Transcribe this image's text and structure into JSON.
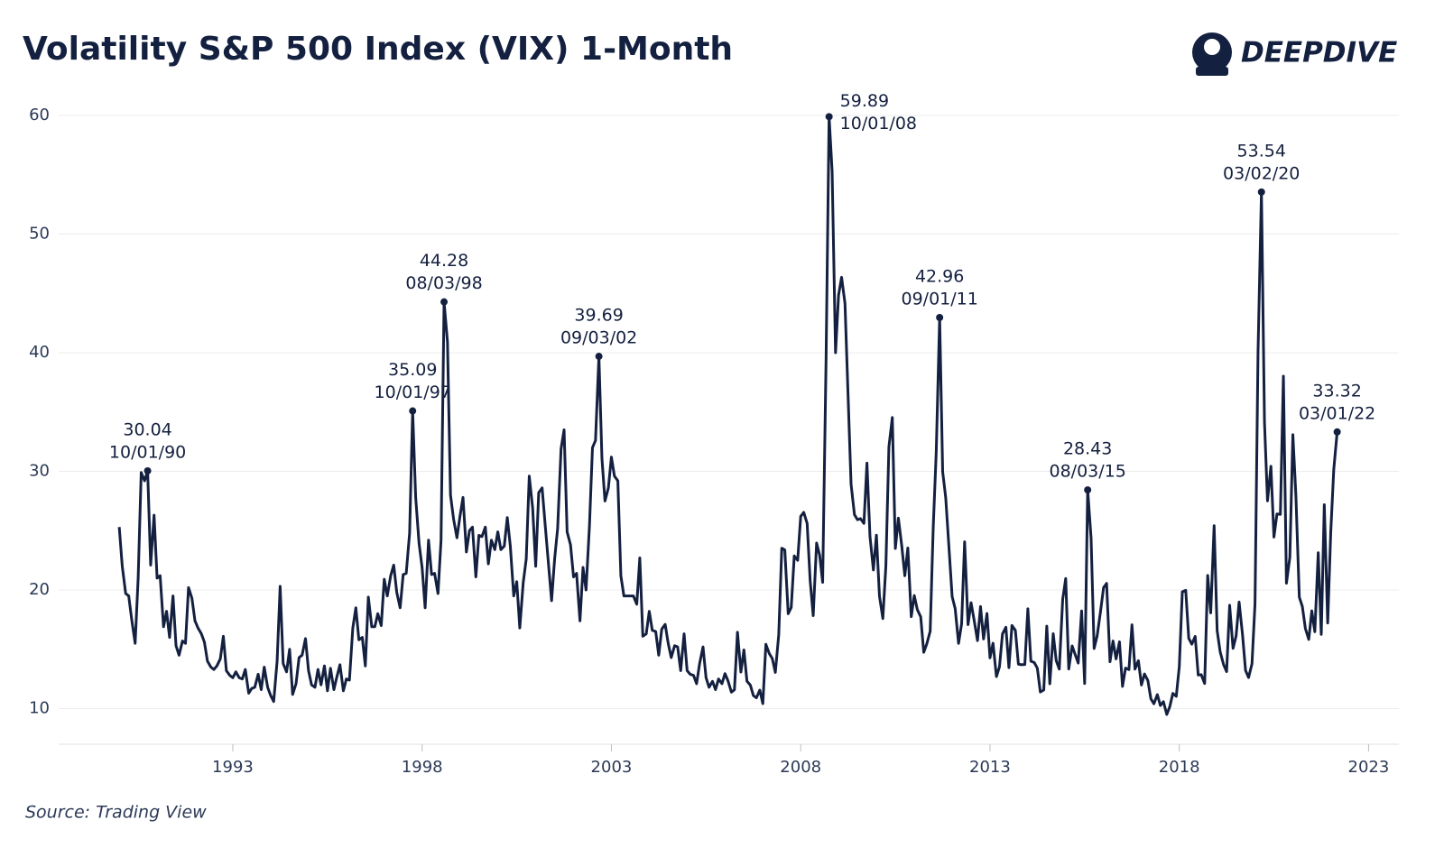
{
  "chart_data": {
    "type": "line",
    "title": "Volatility S&P 500 Index (VIX) 1-Month",
    "brand": "DEEPDIVE",
    "source": "Source: Trading View",
    "xlim": [
      1988.4,
      2023.8
    ],
    "xticks": [
      1993,
      1998,
      2003,
      2008,
      2013,
      2018,
      2023
    ],
    "ylim": [
      7,
      62.5
    ],
    "yticks": [
      10,
      20,
      30,
      40,
      50,
      60
    ],
    "grid": true,
    "x": [
      1990.0,
      1990.08,
      1990.17,
      1990.25,
      1990.33,
      1990.42,
      1990.5,
      1990.58,
      1990.67,
      1990.75,
      1990.83,
      1990.92,
      1991.0,
      1991.08,
      1991.17,
      1991.25,
      1991.33,
      1991.42,
      1991.5,
      1991.58,
      1991.67,
      1991.75,
      1991.83,
      1991.92,
      1992.0,
      1992.08,
      1992.17,
      1992.25,
      1992.33,
      1992.42,
      1992.5,
      1992.58,
      1992.67,
      1992.75,
      1992.83,
      1992.92,
      1993.0,
      1993.08,
      1993.17,
      1993.25,
      1993.33,
      1993.42,
      1993.5,
      1993.58,
      1993.67,
      1993.75,
      1993.83,
      1993.92,
      1994.0,
      1994.08,
      1994.17,
      1994.25,
      1994.33,
      1994.42,
      1994.5,
      1994.58,
      1994.67,
      1994.75,
      1994.83,
      1994.92,
      1995.0,
      1995.08,
      1995.17,
      1995.25,
      1995.33,
      1995.42,
      1995.5,
      1995.58,
      1995.67,
      1995.75,
      1995.83,
      1995.92,
      1996.0,
      1996.08,
      1996.17,
      1996.25,
      1996.33,
      1996.42,
      1996.5,
      1996.58,
      1996.67,
      1996.75,
      1996.83,
      1996.92,
      1997.0,
      1997.08,
      1997.17,
      1997.25,
      1997.33,
      1997.42,
      1997.5,
      1997.58,
      1997.67,
      1997.75,
      1997.83,
      1997.92,
      1998.0,
      1998.08,
      1998.17,
      1998.25,
      1998.33,
      1998.42,
      1998.5,
      1998.58,
      1998.67,
      1998.75,
      1998.83,
      1998.92,
      1999.0,
      1999.08,
      1999.17,
      1999.25,
      1999.33,
      1999.42,
      1999.5,
      1999.58,
      1999.67,
      1999.75,
      1999.83,
      1999.92,
      2000.0,
      2000.08,
      2000.17,
      2000.25,
      2000.33,
      2000.42,
      2000.5,
      2000.58,
      2000.67,
      2000.75,
      2000.83,
      2000.92,
      2001.0,
      2001.08,
      2001.17,
      2001.25,
      2001.33,
      2001.42,
      2001.5,
      2001.58,
      2001.67,
      2001.75,
      2001.83,
      2001.92,
      2002.0,
      2002.08,
      2002.17,
      2002.25,
      2002.33,
      2002.42,
      2002.5,
      2002.58,
      2002.67,
      2002.75,
      2002.83,
      2002.92,
      2003.0,
      2003.08,
      2003.17,
      2003.25,
      2003.33,
      2003.42,
      2003.5,
      2003.58,
      2003.67,
      2003.75,
      2003.83,
      2003.92,
      2004.0,
      2004.08,
      2004.17,
      2004.25,
      2004.33,
      2004.42,
      2004.5,
      2004.58,
      2004.67,
      2004.75,
      2004.83,
      2004.92,
      2005.0,
      2005.08,
      2005.17,
      2005.25,
      2005.33,
      2005.42,
      2005.5,
      2005.58,
      2005.67,
      2005.75,
      2005.83,
      2005.92,
      2006.0,
      2006.08,
      2006.17,
      2006.25,
      2006.33,
      2006.42,
      2006.5,
      2006.58,
      2006.67,
      2006.75,
      2006.83,
      2006.92,
      2007.0,
      2007.08,
      2007.17,
      2007.25,
      2007.33,
      2007.42,
      2007.5,
      2007.58,
      2007.67,
      2007.75,
      2007.83,
      2007.92,
      2008.0,
      2008.08,
      2008.17,
      2008.25,
      2008.33,
      2008.42,
      2008.5,
      2008.58,
      2008.67,
      2008.75,
      2008.83,
      2008.92,
      2009.0,
      2009.08,
      2009.17,
      2009.25,
      2009.33,
      2009.42,
      2009.5,
      2009.58,
      2009.67,
      2009.75,
      2009.83,
      2009.92,
      2010.0,
      2010.08,
      2010.17,
      2010.25,
      2010.33,
      2010.42,
      2010.5,
      2010.58,
      2010.67,
      2010.75,
      2010.83,
      2010.92,
      2011.0,
      2011.08,
      2011.17,
      2011.25,
      2011.33,
      2011.42,
      2011.5,
      2011.58,
      2011.67,
      2011.75,
      2011.83,
      2011.92,
      2012.0,
      2012.08,
      2012.17,
      2012.25,
      2012.33,
      2012.42,
      2012.5,
      2012.58,
      2012.67,
      2012.75,
      2012.83,
      2012.92,
      2013.0,
      2013.08,
      2013.17,
      2013.25,
      2013.33,
      2013.42,
      2013.5,
      2013.58,
      2013.67,
      2013.75,
      2013.83,
      2013.92,
      2014.0,
      2014.08,
      2014.17,
      2014.25,
      2014.33,
      2014.42,
      2014.5,
      2014.58,
      2014.67,
      2014.75,
      2014.83,
      2014.92,
      2015.0,
      2015.08,
      2015.17,
      2015.25,
      2015.33,
      2015.42,
      2015.5,
      2015.58,
      2015.67,
      2015.75,
      2015.83,
      2015.92,
      2016.0,
      2016.08,
      2016.17,
      2016.25,
      2016.33,
      2016.42,
      2016.5,
      2016.58,
      2016.67,
      2016.75,
      2016.83,
      2016.92,
      2017.0,
      2017.08,
      2017.17,
      2017.25,
      2017.33,
      2017.42,
      2017.5,
      2017.58,
      2017.67,
      2017.75,
      2017.83,
      2017.92,
      2018.0,
      2018.08,
      2018.17,
      2018.25,
      2018.33,
      2018.42,
      2018.5,
      2018.58,
      2018.67,
      2018.75,
      2018.83,
      2018.92,
      2019.0,
      2019.08,
      2019.17,
      2019.25,
      2019.33,
      2019.42,
      2019.5,
      2019.58,
      2019.67,
      2019.75,
      2019.83,
      2019.92,
      2020.0,
      2020.08,
      2020.17,
      2020.25,
      2020.33,
      2020.42,
      2020.5,
      2020.58,
      2020.67,
      2020.75,
      2020.83,
      2020.92,
      2021.0,
      2021.08,
      2021.17,
      2021.25,
      2021.33,
      2021.42,
      2021.5,
      2021.58,
      2021.67,
      2021.75,
      2021.83,
      2021.92,
      2022.0,
      2022.08,
      2022.17
    ],
    "series": [
      {
        "name": "VIX",
        "color": "#14203f",
        "values": [
          25.3,
          22.0,
          19.7,
          19.5,
          17.5,
          15.5,
          21.0,
          29.9,
          29.2,
          30.04,
          22.1,
          26.3,
          21.0,
          21.2,
          16.9,
          18.2,
          16.0,
          19.5,
          15.3,
          14.5,
          15.7,
          15.5,
          20.2,
          19.3,
          17.4,
          16.8,
          16.3,
          15.6,
          14.0,
          13.5,
          13.3,
          13.6,
          14.2,
          16.1,
          13.2,
          12.8,
          12.6,
          13.1,
          12.6,
          12.5,
          13.3,
          11.3,
          11.7,
          11.8,
          12.9,
          11.6,
          13.5,
          11.8,
          11.1,
          10.6,
          14.0,
          20.3,
          13.8,
          13.1,
          15.0,
          11.2,
          12.1,
          14.3,
          14.5,
          15.9,
          13.2,
          12.0,
          11.8,
          13.3,
          12.0,
          13.6,
          11.5,
          13.4,
          11.6,
          12.7,
          13.7,
          11.5,
          12.5,
          12.4,
          16.8,
          18.5,
          15.8,
          16.0,
          13.6,
          19.4,
          16.9,
          16.9,
          18.0,
          17.0,
          20.9,
          19.5,
          21.2,
          22.1,
          19.8,
          18.5,
          21.3,
          21.4,
          24.8,
          35.09,
          27.8,
          23.9,
          21.9,
          18.5,
          24.2,
          21.3,
          21.4,
          19.7,
          24.2,
          44.28,
          40.9,
          28.0,
          26.0,
          24.4,
          26.2,
          27.8,
          23.2,
          25.0,
          25.3,
          21.1,
          24.6,
          24.5,
          25.3,
          22.2,
          24.2,
          23.4,
          24.9,
          23.4,
          23.7,
          26.1,
          23.7,
          19.5,
          20.7,
          16.8,
          20.6,
          22.6,
          29.6,
          26.9,
          22.0,
          28.2,
          28.6,
          25.5,
          22.5,
          19.1,
          22.6,
          25.2,
          31.9,
          33.5,
          24.9,
          23.8,
          21.1,
          21.4,
          17.4,
          21.9,
          20.0,
          25.4,
          32.0,
          32.6,
          39.69,
          31.1,
          27.5,
          28.6,
          31.2,
          29.6,
          29.2,
          21.2,
          19.5,
          19.5,
          19.5,
          19.5,
          18.8,
          22.7,
          16.1,
          16.3,
          18.2,
          16.6,
          16.5,
          14.5,
          16.7,
          17.1,
          15.5,
          14.3,
          15.3,
          15.2,
          13.2,
          16.3,
          13.2,
          12.9,
          12.8,
          12.1,
          13.8,
          15.2,
          12.6,
          11.8,
          12.3,
          11.6,
          12.5,
          12.1,
          12.95,
          12.34,
          11.39,
          11.59,
          16.44,
          13.08,
          14.95,
          12.31,
          11.98,
          11.1,
          10.91,
          11.56,
          10.42,
          15.42,
          14.64,
          14.22,
          13.05,
          16.23,
          23.52,
          23.38,
          18.0,
          18.53,
          22.87,
          22.5,
          26.2,
          26.54,
          25.61,
          20.79,
          17.83,
          23.95,
          22.94,
          20.65,
          39.39,
          59.89,
          55.28,
          40.0,
          44.84,
          46.35,
          44.14,
          36.5,
          28.92,
          26.35,
          25.92,
          26.01,
          25.61,
          30.69,
          24.51,
          21.68,
          24.62,
          19.5,
          17.59,
          22.05,
          32.07,
          34.54,
          23.5,
          26.05,
          23.7,
          21.2,
          23.54,
          17.75,
          19.53,
          18.35,
          17.74,
          14.75,
          15.45,
          16.52,
          25.25,
          31.62,
          42.96,
          29.96,
          27.8,
          23.4,
          19.44,
          18.43,
          15.5,
          17.15,
          24.06,
          17.08,
          18.93,
          17.47,
          15.73,
          18.6,
          15.87,
          18.02,
          14.28,
          15.51,
          12.7,
          13.52,
          16.3,
          16.86,
          13.45,
          17.01,
          16.6,
          13.75,
          13.7,
          13.72,
          18.41,
          14.0,
          13.88,
          13.41,
          11.4,
          11.57,
          16.95,
          12.09,
          16.31,
          14.03,
          13.33,
          19.2,
          20.97,
          13.34,
          15.29,
          14.55,
          13.84,
          18.23,
          12.12,
          28.43,
          24.38,
          15.07,
          16.13,
          18.21,
          20.2,
          20.55,
          13.95,
          15.7,
          14.19,
          15.63,
          11.87,
          13.42,
          13.29,
          17.06,
          13.33,
          14.04,
          11.99,
          12.92,
          12.37,
          10.82,
          10.41,
          11.18,
          10.26,
          10.59,
          9.51,
          10.18,
          11.28,
          11.04,
          13.54,
          19.85,
          19.97,
          15.93,
          15.43,
          16.09,
          12.83,
          12.86,
          12.12,
          21.23,
          18.07,
          25.42,
          16.57,
          14.78,
          13.71,
          13.12,
          18.71,
          15.08,
          16.12,
          18.98,
          16.24,
          13.22,
          12.62,
          13.78,
          18.84,
          40.11,
          53.54,
          34.15,
          27.51,
          30.43,
          24.46,
          26.41,
          26.37,
          38.02,
          20.57,
          22.75,
          33.09,
          27.95,
          19.4,
          18.61,
          16.76,
          15.83,
          18.24,
          16.48,
          23.14,
          16.26,
          27.19,
          17.22,
          24.83,
          30.15,
          33.32
        ]
      }
    ],
    "annotations": [
      {
        "x": 1990.75,
        "y": 30.04,
        "text": "10/01/90"
      },
      {
        "x": 1997.75,
        "y": 35.09,
        "text": "10/01/97"
      },
      {
        "x": 1998.58,
        "y": 44.28,
        "text": "08/03/98"
      },
      {
        "x": 2002.67,
        "y": 39.69,
        "text": "09/03/02"
      },
      {
        "x": 2008.75,
        "y": 59.89,
        "text": "10/01/08"
      },
      {
        "x": 2011.67,
        "y": 42.96,
        "text": "09/01/11"
      },
      {
        "x": 2015.58,
        "y": 28.43,
        "text": "08/03/15"
      },
      {
        "x": 2020.17,
        "y": 53.54,
        "text": "03/02/20"
      },
      {
        "x": 2022.17,
        "y": 33.32,
        "text": "03/01/22"
      }
    ]
  }
}
